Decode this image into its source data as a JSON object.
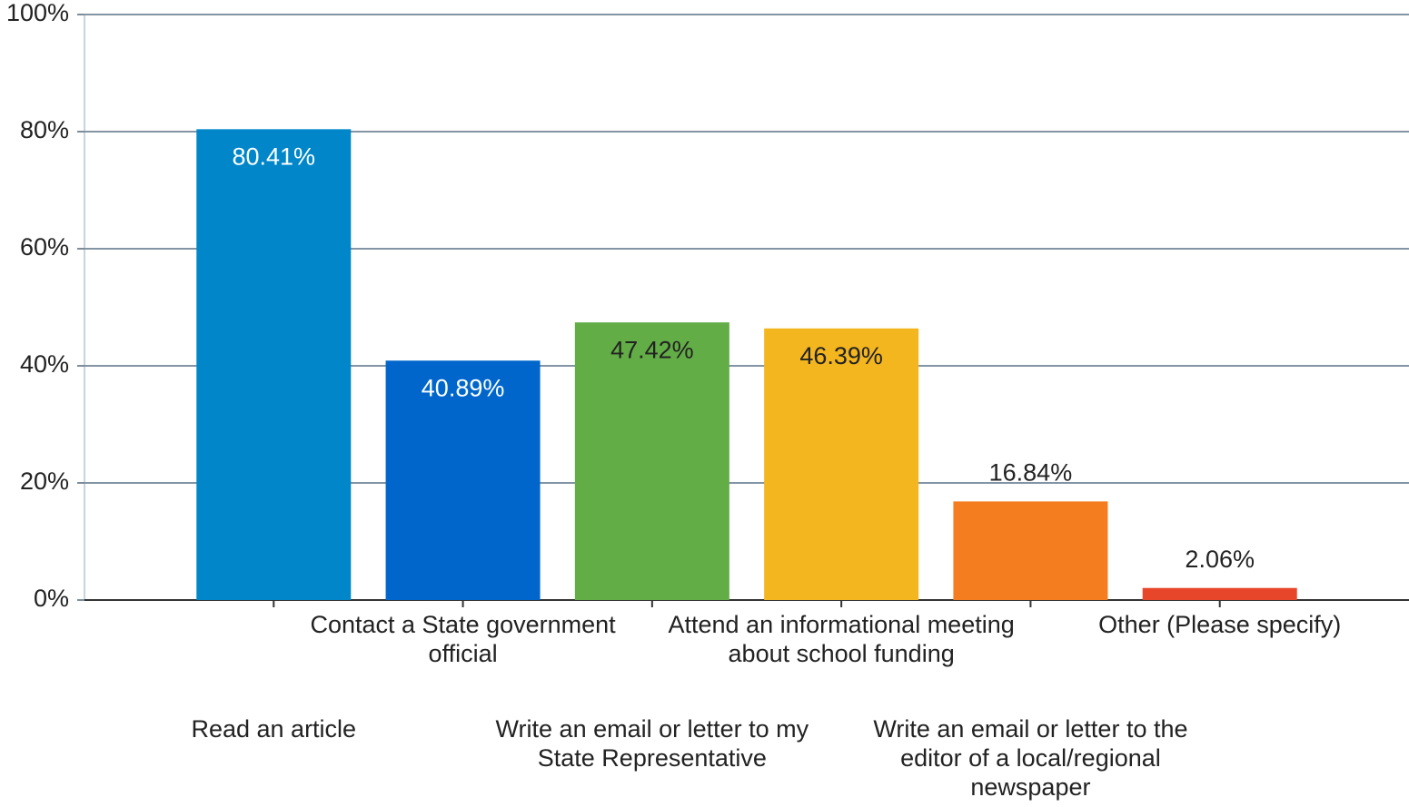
{
  "chart_data": {
    "type": "bar",
    "categories": [
      "Read an article",
      "Contact a State government official",
      "Write an email or letter to my State Representative",
      "Attend an informational meeting about school funding",
      "Write an email or letter to the editor of a local/regional newspaper",
      "Other (Please specify)"
    ],
    "values": [
      80.41,
      40.89,
      47.42,
      46.39,
      16.84,
      2.06
    ],
    "value_labels": [
      "80.41%",
      "40.89%",
      "47.42%",
      "46.39%",
      "16.84%",
      "2.06%"
    ],
    "colors": [
      "#0086c9",
      "#0066cc",
      "#63ad47",
      "#f3b61f",
      "#f47d20",
      "#e8462b"
    ],
    "ylim": [
      0,
      100
    ],
    "yticks": [
      {
        "value": 0,
        "label": "0%"
      },
      {
        "value": 20,
        "label": "20%"
      },
      {
        "value": 40,
        "label": "40%"
      },
      {
        "value": 60,
        "label": "60%"
      },
      {
        "value": 80,
        "label": "80%"
      },
      {
        "value": 100,
        "label": "100%"
      }
    ],
    "grid": true
  }
}
